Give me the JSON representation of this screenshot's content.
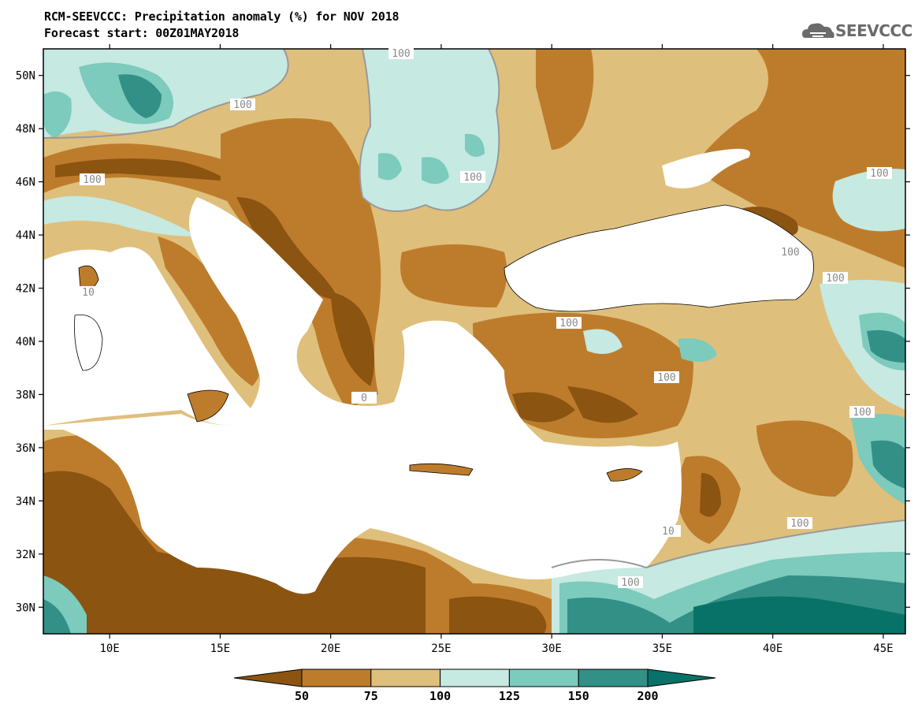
{
  "header": {
    "title_line1": "RCM-SEEVCCC: Precipitation anomaly (%) for NOV 2018",
    "title_line2": "Forecast start: 00Z01MAY2018"
  },
  "logo": {
    "text": "SEEVCCC",
    "icon": "cloud-icon"
  },
  "map": {
    "lon_range": [
      7,
      46
    ],
    "lat_range": [
      29,
      51
    ],
    "x_ticks": [
      "10E",
      "15E",
      "20E",
      "25E",
      "30E",
      "35E",
      "40E",
      "45E"
    ],
    "y_ticks": [
      "30N",
      "32N",
      "34N",
      "36N",
      "38N",
      "40N",
      "42N",
      "44N",
      "46N",
      "48N",
      "50N"
    ],
    "contour_labels": [
      "100",
      "100",
      "100",
      "100",
      "100",
      "100",
      "100",
      "100",
      "100",
      "100",
      "100",
      "100",
      "10",
      "0",
      "10"
    ]
  },
  "colorbar": {
    "labels": [
      "50",
      "75",
      "100",
      "125",
      "150",
      "200"
    ],
    "colors": [
      "#8b5410",
      "#bd7c2c",
      "#dfbf7c",
      "#c6e9e2",
      "#7ccbbd",
      "#329087",
      "#087268"
    ]
  },
  "colors": {
    "brown_dark": "#8b5410",
    "brown_mid": "#bd7c2c",
    "tan": "#dfbf7c",
    "aqua_light": "#c6e9e2",
    "teal_mid": "#7ccbbd",
    "teal_dark": "#329087",
    "teal_deep": "#087268",
    "sea": "#ffffff"
  }
}
